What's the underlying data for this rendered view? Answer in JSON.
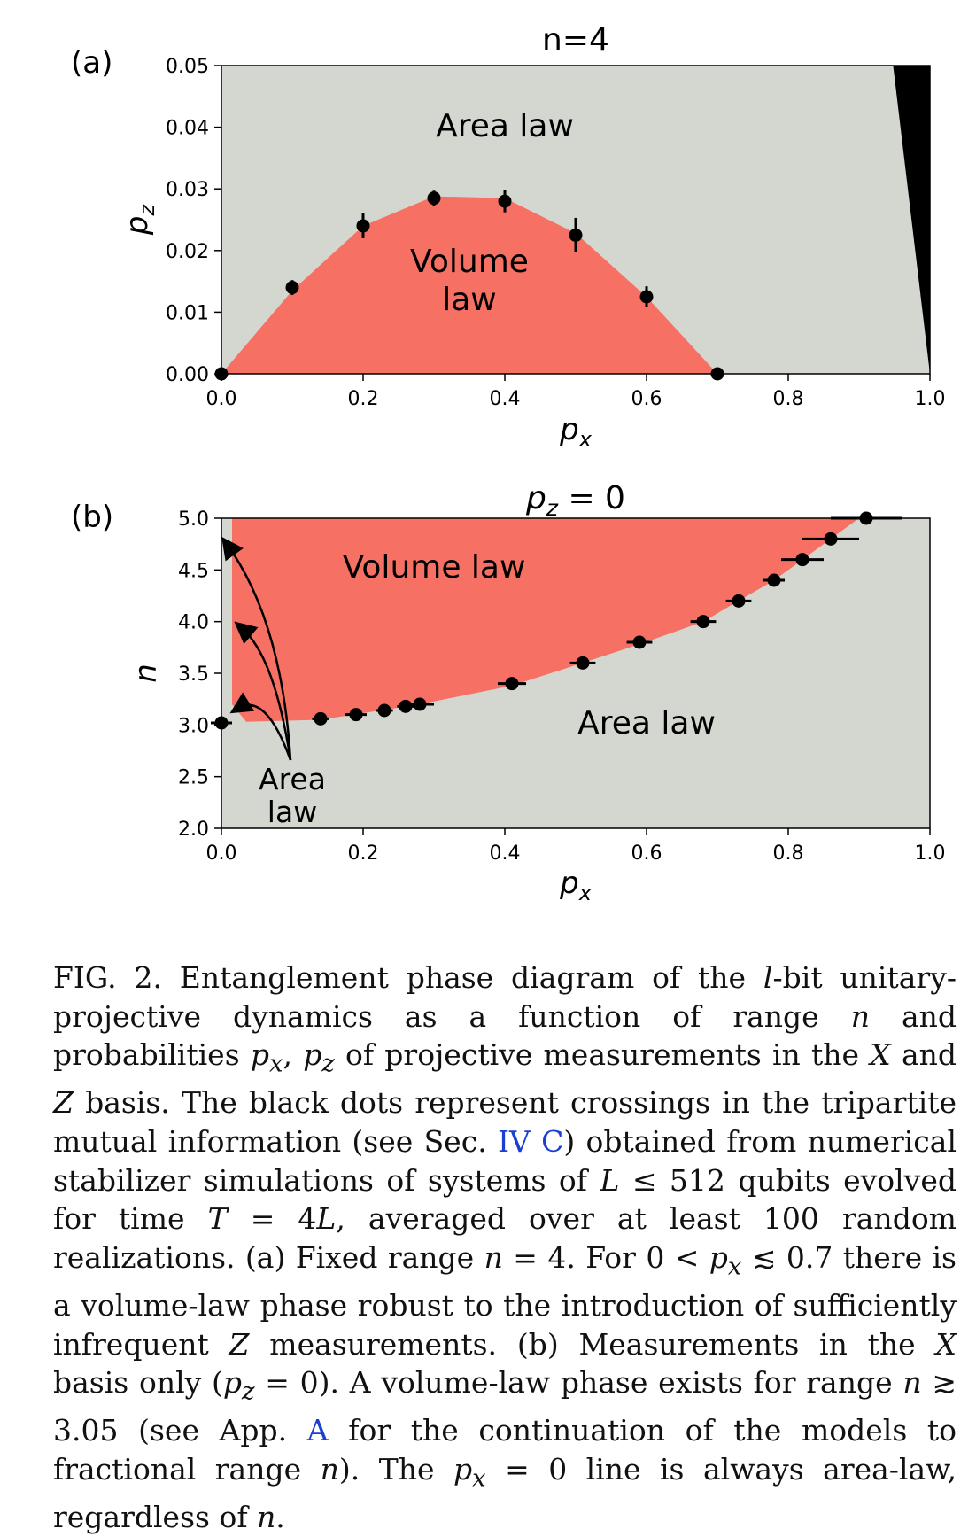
{
  "figure": {
    "colors": {
      "area_law": "#d4d6d0",
      "volume_law": "#f77064",
      "black_region": "#000000",
      "dots": "#000000",
      "link": "#1a3fd1"
    },
    "panels": [
      {
        "panel_label": "(a)",
        "title": "n=4",
        "xlabel": "p_x",
        "ylabel": "p_z",
        "region_labels": {
          "area": "Area law",
          "volume_line1": "Volume",
          "volume_line2": "law"
        }
      },
      {
        "panel_label": "(b)",
        "title": "p_z = 0",
        "xlabel": "p_x",
        "ylabel": "n",
        "region_labels": {
          "volume": "Volume law",
          "area": "Area law",
          "area_arrow_line1": "Area",
          "area_arrow_line2": "law"
        }
      }
    ]
  },
  "chart_data": [
    {
      "type": "scatter",
      "title": "n=4",
      "xlabel": "p_x",
      "ylabel": "p_z",
      "xlim": [
        0.0,
        1.0
      ],
      "ylim": [
        0.0,
        0.05
      ],
      "xticks": [
        "0.0",
        "0.2",
        "0.4",
        "0.6",
        "0.8",
        "1.0"
      ],
      "yticks": [
        "0.00",
        "0.01",
        "0.02",
        "0.03",
        "0.04",
        "0.05"
      ],
      "points": [
        {
          "x": 0.0,
          "y": 0.0,
          "err": 0.0
        },
        {
          "x": 0.1,
          "y": 0.014,
          "err": 0.0012
        },
        {
          "x": 0.2,
          "y": 0.024,
          "err": 0.002
        },
        {
          "x": 0.3,
          "y": 0.0285,
          "err": 0.0012
        },
        {
          "x": 0.4,
          "y": 0.028,
          "err": 0.0018
        },
        {
          "x": 0.5,
          "y": 0.0225,
          "err": 0.0028
        },
        {
          "x": 0.6,
          "y": 0.0125,
          "err": 0.0017
        },
        {
          "x": 0.7,
          "y": 0.0,
          "err": 0.0
        }
      ],
      "volume_boundary": [
        [
          0.0,
          0.0
        ],
        [
          0.1,
          0.0135
        ],
        [
          0.2,
          0.024
        ],
        [
          0.3,
          0.0288
        ],
        [
          0.4,
          0.0285
        ],
        [
          0.5,
          0.0228
        ],
        [
          0.6,
          0.0125
        ],
        [
          0.7,
          0.0
        ]
      ],
      "black_region": [
        [
          0.948,
          0.05
        ],
        [
          1.0,
          0.05
        ],
        [
          1.0,
          0.0
        ]
      ],
      "grid": false
    },
    {
      "type": "scatter",
      "title": "p_z = 0",
      "xlabel": "p_x",
      "ylabel": "n",
      "xlim": [
        0.0,
        1.0
      ],
      "ylim": [
        2.0,
        5.0
      ],
      "xticks": [
        "0.0",
        "0.2",
        "0.4",
        "0.6",
        "0.8",
        "1.0"
      ],
      "yticks": [
        "2.0",
        "2.5",
        "3.0",
        "3.5",
        "4.0",
        "4.5",
        "5.0"
      ],
      "points": [
        {
          "x": 0.0,
          "y": 3.02,
          "xerr": 0.015
        },
        {
          "x": 0.14,
          "y": 3.06,
          "xerr": 0.012
        },
        {
          "x": 0.19,
          "y": 3.1,
          "xerr": 0.015
        },
        {
          "x": 0.23,
          "y": 3.14,
          "xerr": 0.012
        },
        {
          "x": 0.26,
          "y": 3.18,
          "xerr": 0.012
        },
        {
          "x": 0.28,
          "y": 3.2,
          "xerr": 0.02
        },
        {
          "x": 0.41,
          "y": 3.4,
          "xerr": 0.02
        },
        {
          "x": 0.51,
          "y": 3.6,
          "xerr": 0.018
        },
        {
          "x": 0.59,
          "y": 3.8,
          "xerr": 0.018
        },
        {
          "x": 0.68,
          "y": 4.0,
          "xerr": 0.018
        },
        {
          "x": 0.73,
          "y": 4.2,
          "xerr": 0.018
        },
        {
          "x": 0.78,
          "y": 4.4,
          "xerr": 0.015
        },
        {
          "x": 0.82,
          "y": 4.6,
          "xerr": 0.03
        },
        {
          "x": 0.86,
          "y": 4.8,
          "xerr": 0.04
        },
        {
          "x": 0.91,
          "y": 5.0,
          "xerr": 0.05
        }
      ],
      "volume_boundary": [
        [
          0.015,
          5.0
        ],
        [
          0.015,
          3.2
        ],
        [
          0.035,
          3.03
        ],
        [
          0.14,
          3.05
        ],
        [
          0.28,
          3.2
        ],
        [
          0.41,
          3.38
        ],
        [
          0.51,
          3.6
        ],
        [
          0.59,
          3.78
        ],
        [
          0.68,
          4.0
        ],
        [
          0.73,
          4.2
        ],
        [
          0.78,
          4.4
        ],
        [
          0.82,
          4.6
        ],
        [
          0.86,
          4.8
        ],
        [
          0.9,
          5.0
        ]
      ],
      "grid": false
    }
  ],
  "caption": {
    "fig_label": "FIG. 2.",
    "part1": " Entanglement phase diagram of the ",
    "lbit": "l",
    "part2": "-bit unitary-projective dynamics as a function of range ",
    "n1": "n",
    "part3": " and probabilities ",
    "px1": "p",
    "px1_sub": "x",
    "comma": ", ",
    "pz1": "p",
    "pz1_sub": "z",
    "part4": " of projective measurements in the ",
    "X1": "X",
    "and": " and ",
    "Z1": "Z",
    "part5": " basis. The black dots represent crossings in the tripartite mutual information (see Sec. ",
    "sec_link": "IV C",
    "part6": ") obtained from numerical stabilizer simulations of systems of ",
    "L1": "L",
    "part7": " ≤ 512 qubits evolved for time ",
    "T1": "T",
    "part8": " = 4",
    "L2": "L",
    "part9": ", averaged over at least 100 random realizations. (a) Fixed range ",
    "n2": "n",
    "part10": " = 4. For 0 < ",
    "px2": "p",
    "px2_sub": "x",
    "part11": " ≲ 0.7 there is a volume-law phase robust to the introduction of sufficiently infrequent ",
    "Z2": "Z",
    "part12": " measurements. (b) Measurements in the ",
    "X2": "X",
    "part13": " basis only (",
    "pz2": "p",
    "pz2_sub": "z",
    "part14": " = 0). A volume-law phase exists for range ",
    "n3": "n",
    "part15": " ≳ 3.05 (see App. ",
    "app_link": "A",
    "part16": " for the continuation of the models to fractional range ",
    "n4": "n",
    "part17": "). The ",
    "px3": "p",
    "px3_sub": "x",
    "part18": " = 0 line is always area-law, regardless of ",
    "n5": "n",
    "part19": "."
  }
}
